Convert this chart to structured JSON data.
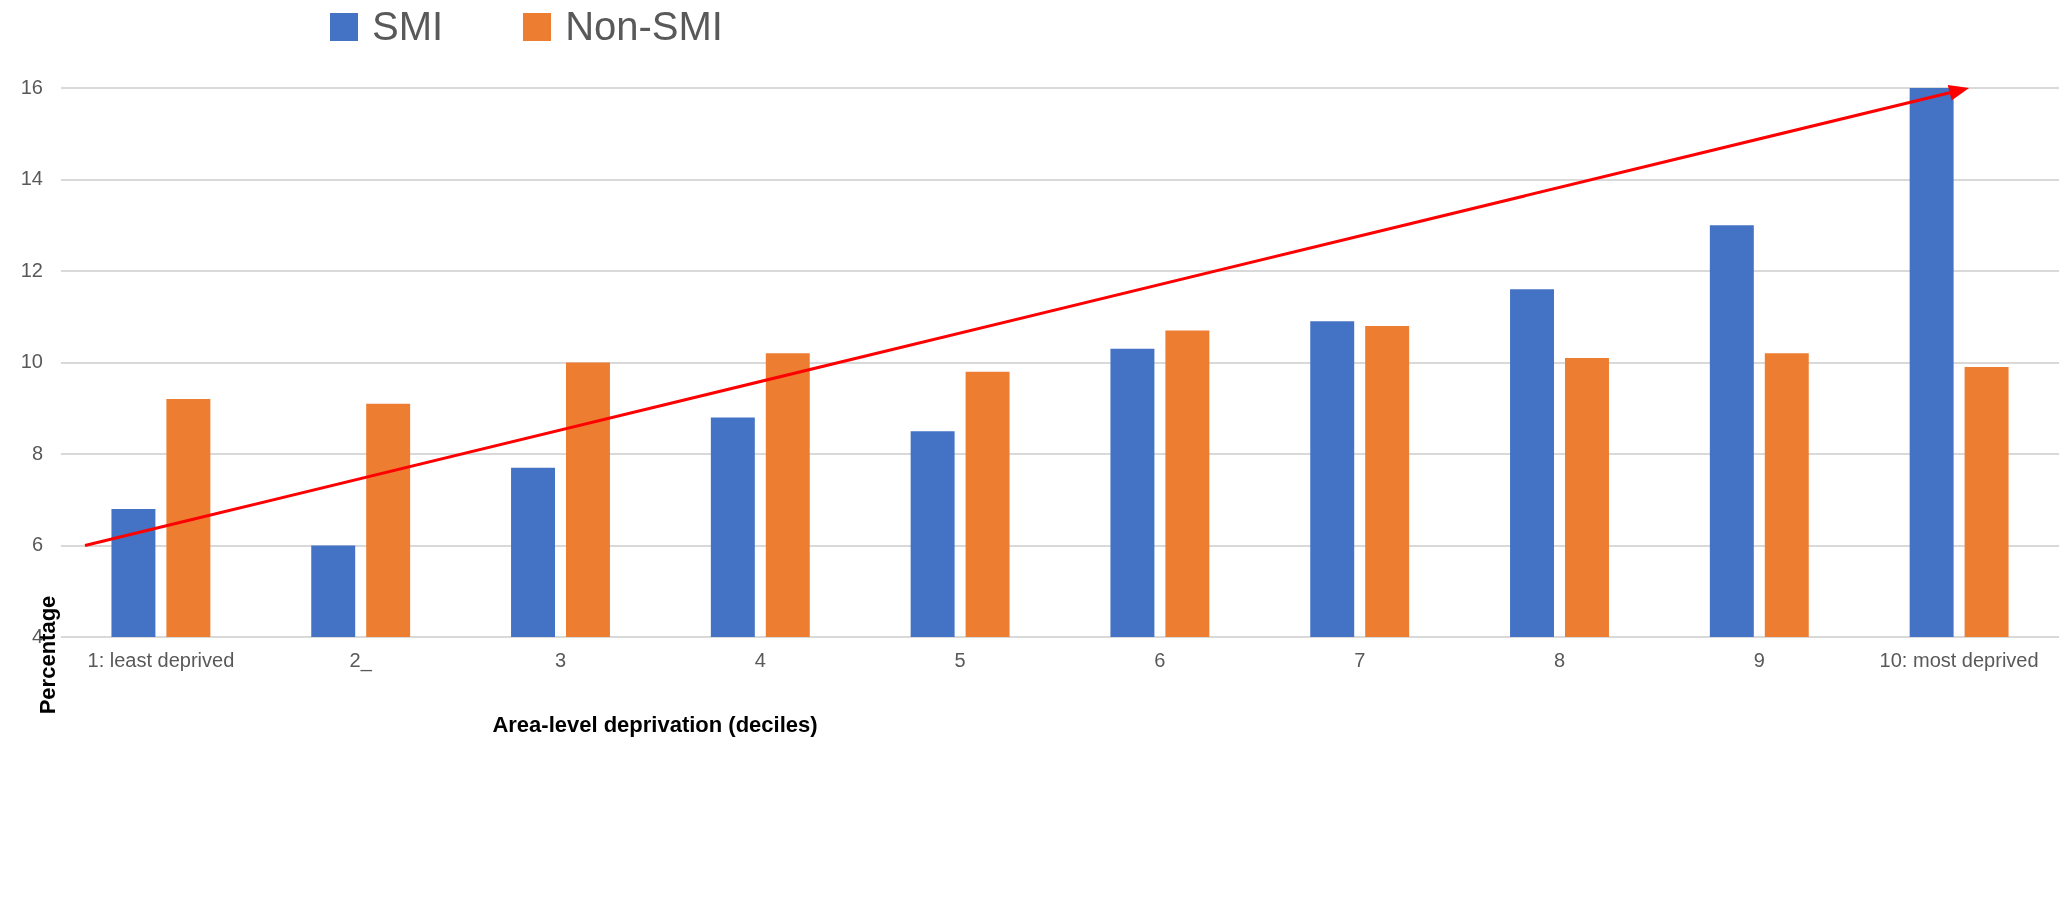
{
  "chart_data": {
    "type": "bar",
    "xlabel": "Area-level deprivation (deciles)",
    "ylabel": "Percentage",
    "categories": [
      "1: least deprived",
      "2_",
      "3",
      "4",
      "5",
      "6",
      "7",
      "8",
      "9",
      "10: most deprived"
    ],
    "series": [
      {
        "name": "SMI",
        "color": "#4472c4",
        "values": [
          6.8,
          6.0,
          7.7,
          8.8,
          8.5,
          10.3,
          10.9,
          11.6,
          13.0,
          16.0
        ]
      },
      {
        "name": "Non-SMI",
        "color": "#ed7d31",
        "values": [
          9.2,
          9.1,
          10.0,
          10.2,
          9.8,
          10.7,
          10.8,
          10.1,
          10.2,
          9.9
        ]
      }
    ],
    "ylim": [
      4,
      16
    ],
    "yticks": [
      4,
      6,
      8,
      10,
      12,
      14,
      16
    ],
    "grid": "y",
    "legend": "top"
  }
}
